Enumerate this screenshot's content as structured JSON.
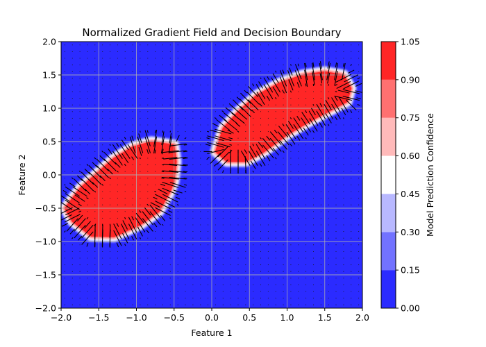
{
  "chart_data": {
    "type": "heatmap",
    "title": "Normalized Gradient Field and Decision Boundary",
    "xlabel": "Feature 1",
    "ylabel": "Feature 2",
    "xlim": [
      -2.0,
      2.0
    ],
    "ylim": [
      -2.0,
      2.0
    ],
    "grid": true,
    "x_ticks": [
      "−2.0",
      "−1.5",
      "−1.0",
      "−0.5",
      "0.0",
      "0.5",
      "1.0",
      "1.5",
      "2.0"
    ],
    "y_ticks": [
      "−2.0",
      "−1.5",
      "−1.0",
      "−0.5",
      "0.0",
      "0.5",
      "1.0",
      "1.5",
      "2.0"
    ],
    "colorbar": {
      "label": "Model Prediction Confidence",
      "levels": [
        0.0,
        0.15,
        0.3,
        0.45,
        0.6,
        0.75,
        0.9,
        1.05
      ],
      "tick_labels": [
        "0.00",
        "0.15",
        "0.30",
        "0.45",
        "0.60",
        "0.75",
        "0.90",
        "1.05"
      ],
      "colors": [
        "#2b2bff",
        "#7272ff",
        "#b8b8ff",
        "#ffffff",
        "#ffbaba",
        "#ff7070",
        "#ff2626"
      ]
    },
    "high_confidence_regions": [
      {
        "class_value": 1.0,
        "polygon": [
          [
            -1.95,
            -0.5
          ],
          [
            -1.75,
            -0.2
          ],
          [
            -1.5,
            0.05
          ],
          [
            -1.3,
            0.25
          ],
          [
            -1.05,
            0.42
          ],
          [
            -0.8,
            0.5
          ],
          [
            -0.5,
            0.45
          ],
          [
            -0.47,
            0.2
          ],
          [
            -0.5,
            -0.1
          ],
          [
            -0.55,
            -0.25
          ],
          [
            -0.7,
            -0.55
          ],
          [
            -0.95,
            -0.75
          ],
          [
            -1.3,
            -0.93
          ],
          [
            -1.6,
            -0.92
          ],
          [
            -1.85,
            -0.7
          ]
        ]
      },
      {
        "class_value": 1.0,
        "polygon": [
          [
            0.05,
            0.35
          ],
          [
            0.15,
            0.7
          ],
          [
            0.35,
            0.95
          ],
          [
            0.6,
            1.2
          ],
          [
            0.9,
            1.38
          ],
          [
            1.2,
            1.5
          ],
          [
            1.5,
            1.55
          ],
          [
            1.75,
            1.5
          ],
          [
            1.85,
            1.3
          ],
          [
            1.8,
            1.1
          ],
          [
            1.6,
            0.98
          ],
          [
            1.3,
            0.8
          ],
          [
            1.0,
            0.6
          ],
          [
            0.7,
            0.35
          ],
          [
            0.45,
            0.2
          ],
          [
            0.2,
            0.2
          ]
        ]
      }
    ],
    "vector_field": "normalized gradient arrows, long near the decision boundary and near zero elsewhere"
  }
}
